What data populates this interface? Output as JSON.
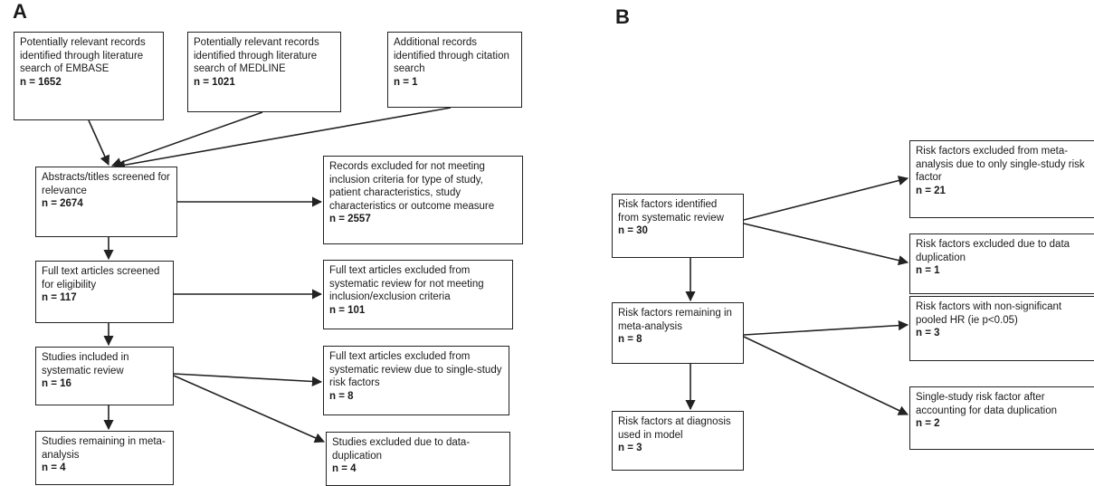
{
  "panelA": {
    "label": "A",
    "embase": {
      "text": "Potentially relevant records identified through literature search of EMBASE",
      "n": "n = 1652"
    },
    "medline": {
      "text": "Potentially relevant records identified through literature search of MEDLINE",
      "n": "n = 1021"
    },
    "citation": {
      "text": "Additional records identified through citation search",
      "n": "n = 1"
    },
    "screened": {
      "text": "Abstracts/titles screened for relevance",
      "n": "n = 2674"
    },
    "excluded_records": {
      "text": "Records excluded for not meeting inclusion criteria for type of study, patient characteristics, study characteristics or outcome measure",
      "n": "n = 2557"
    },
    "fulltext": {
      "text": "Full text articles screened for eligibility",
      "n": "n = 117"
    },
    "excluded_fulltext": {
      "text": "Full text articles excluded from systematic review for not meeting inclusion/exclusion criteria",
      "n": "n = 101"
    },
    "included": {
      "text": "Studies included in systematic review",
      "n": "n = 16"
    },
    "excluded_single": {
      "text": "Full text articles excluded from systematic review due to single-study risk factors",
      "n": "n = 8"
    },
    "remaining": {
      "text": "Studies remaining in meta-analysis",
      "n": "n = 4"
    },
    "excluded_dup": {
      "text": "Studies excluded due to data-duplication",
      "n": "n = 4"
    }
  },
  "panelB": {
    "label": "B",
    "identified": {
      "text": "Risk factors identified from systematic review",
      "n": "n = 30"
    },
    "excluded_single": {
      "text": "Risk factors excluded from meta-analysis due to only single-study risk factor",
      "n": "n = 21"
    },
    "excluded_dup": {
      "text": "Risk factors excluded due to data duplication",
      "n": "n = 1"
    },
    "remaining": {
      "text": "Risk factors remaining in meta-analysis",
      "n": "n = 8"
    },
    "nonsig": {
      "text": "Risk factors with non-significant pooled HR (ie p<0.05)",
      "n": "n = 3"
    },
    "model": {
      "text": "Risk factors at diagnosis used in model",
      "n": "n = 3"
    },
    "single_after_dup": {
      "text": "Single-study risk factor after accounting for data duplication",
      "n": "n = 2"
    }
  }
}
